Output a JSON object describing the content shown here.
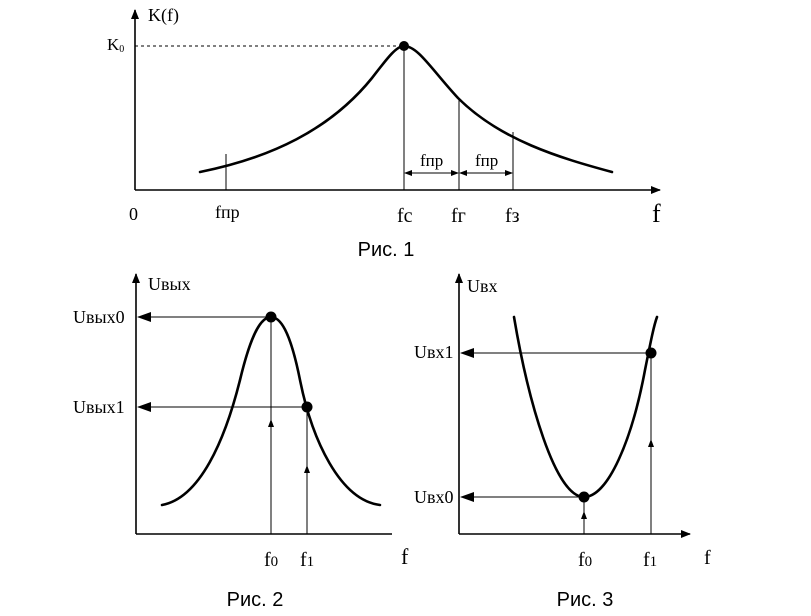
{
  "fig1": {
    "y_label": "K(f)",
    "k0_label": "K",
    "k0_sub": "0",
    "origin_label": "0",
    "x_label": "f",
    "f_pr_label": "fпр",
    "f_c_label": "fс",
    "f_g_label": "fг",
    "f_z_label": "fз",
    "band1_label": "fпр",
    "band2_label": "fпр",
    "caption": "Рис. 1"
  },
  "fig2": {
    "y_label": "Uвых",
    "u0_label": "Uвых0",
    "u1_label": "Uвых1",
    "f0_main": "f",
    "f0_sub": "0",
    "f1_main": "f",
    "f1_sub": "1",
    "x_label": "f",
    "caption": "Рис. 2"
  },
  "fig3": {
    "y_label": "Uвх",
    "u1_label": "Uвх1",
    "u0_label": "Uвх0",
    "f0_main": "f",
    "f0_sub": "0",
    "f1_main": "f",
    "f1_sub": "1",
    "x_label": "f",
    "caption": "Рис. 3"
  }
}
